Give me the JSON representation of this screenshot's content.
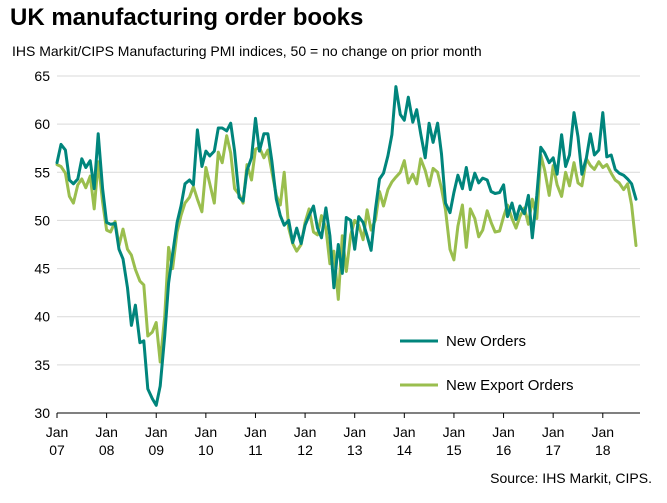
{
  "chart_data": {
    "type": "line",
    "title": "UK manufacturing order books",
    "subtitle": "IHS Markit/CIPS Manufacturing PMI indices, 50 = no change on prior month",
    "source": "Source: IHS Markit, CIPS.",
    "ylim": [
      30,
      65
    ],
    "yticks": [
      "65",
      "60",
      "55",
      "50",
      "45",
      "40",
      "35",
      "30"
    ],
    "xlim": [
      2007.0,
      2018.75
    ],
    "xticks": [
      {
        "line1": "Jan",
        "line2": "07"
      },
      {
        "line1": "Jan",
        "line2": "08"
      },
      {
        "line1": "Jan",
        "line2": "09"
      },
      {
        "line1": "Jan",
        "line2": "10"
      },
      {
        "line1": "Jan",
        "line2": "11"
      },
      {
        "line1": "Jan",
        "line2": "12"
      },
      {
        "line1": "Jan",
        "line2": "13"
      },
      {
        "line1": "Jan",
        "line2": "14"
      },
      {
        "line1": "Jan",
        "line2": "15"
      },
      {
        "line1": "Jan",
        "line2": "16"
      },
      {
        "line1": "Jan",
        "line2": "17"
      },
      {
        "line1": "Jan",
        "line2": "18"
      }
    ],
    "grid": true,
    "legend_position": "bottom-right",
    "series": [
      {
        "name": "New Orders",
        "color": "#00857C",
        "points": [
          [
            2007.0,
            56.0
          ],
          [
            2007.08,
            57.9
          ],
          [
            2007.17,
            57.3
          ],
          [
            2007.25,
            54.2
          ],
          [
            2007.33,
            53.8
          ],
          [
            2007.42,
            54.3
          ],
          [
            2007.5,
            56.4
          ],
          [
            2007.58,
            55.5
          ],
          [
            2007.67,
            56.2
          ],
          [
            2007.75,
            53.3
          ],
          [
            2007.83,
            59.0
          ],
          [
            2007.92,
            53.3
          ],
          [
            2008.0,
            49.8
          ],
          [
            2008.08,
            49.6
          ],
          [
            2008.17,
            49.7
          ],
          [
            2008.25,
            47.0
          ],
          [
            2008.33,
            46.0
          ],
          [
            2008.42,
            43.0
          ],
          [
            2008.5,
            39.1
          ],
          [
            2008.58,
            41.2
          ],
          [
            2008.67,
            37.3
          ],
          [
            2008.75,
            37.5
          ],
          [
            2008.83,
            32.5
          ],
          [
            2008.92,
            31.5
          ],
          [
            2009.0,
            30.8
          ],
          [
            2009.08,
            32.8
          ],
          [
            2009.17,
            38.0
          ],
          [
            2009.25,
            43.5
          ],
          [
            2009.33,
            46.5
          ],
          [
            2009.42,
            49.8
          ],
          [
            2009.5,
            51.5
          ],
          [
            2009.58,
            53.8
          ],
          [
            2009.67,
            54.2
          ],
          [
            2009.75,
            53.7
          ],
          [
            2009.83,
            59.4
          ],
          [
            2009.92,
            55.6
          ],
          [
            2010.0,
            57.2
          ],
          [
            2010.08,
            56.7
          ],
          [
            2010.17,
            57.2
          ],
          [
            2010.25,
            59.6
          ],
          [
            2010.33,
            59.6
          ],
          [
            2010.42,
            59.3
          ],
          [
            2010.5,
            60.1
          ],
          [
            2010.58,
            57.2
          ],
          [
            2010.67,
            52.4
          ],
          [
            2010.75,
            52.0
          ],
          [
            2010.83,
            55.2
          ],
          [
            2010.92,
            56.5
          ],
          [
            2011.0,
            60.6
          ],
          [
            2011.08,
            57.2
          ],
          [
            2011.17,
            59.0
          ],
          [
            2011.25,
            59.0
          ],
          [
            2011.33,
            56.2
          ],
          [
            2011.42,
            52.2
          ],
          [
            2011.5,
            50.5
          ],
          [
            2011.58,
            49.5
          ],
          [
            2011.67,
            50.0
          ],
          [
            2011.75,
            47.7
          ],
          [
            2011.83,
            49.2
          ],
          [
            2011.92,
            47.6
          ],
          [
            2012.0,
            49.5
          ],
          [
            2012.08,
            50.5
          ],
          [
            2012.17,
            51.5
          ],
          [
            2012.25,
            49.2
          ],
          [
            2012.33,
            48.2
          ],
          [
            2012.42,
            51.3
          ],
          [
            2012.5,
            48.4
          ],
          [
            2012.58,
            43.0
          ],
          [
            2012.67,
            47.5
          ],
          [
            2012.75,
            44.5
          ],
          [
            2012.83,
            50.3
          ],
          [
            2012.92,
            50.0
          ],
          [
            2013.0,
            47.0
          ],
          [
            2013.08,
            50.4
          ],
          [
            2013.17,
            49.8
          ],
          [
            2013.25,
            48.4
          ],
          [
            2013.33,
            46.9
          ],
          [
            2013.42,
            51.2
          ],
          [
            2013.5,
            54.3
          ],
          [
            2013.58,
            54.9
          ],
          [
            2013.67,
            56.7
          ],
          [
            2013.75,
            58.9
          ],
          [
            2013.83,
            63.9
          ],
          [
            2013.92,
            61.0
          ],
          [
            2014.0,
            60.4
          ],
          [
            2014.08,
            62.8
          ],
          [
            2014.17,
            60.2
          ],
          [
            2014.25,
            61.5
          ],
          [
            2014.33,
            59.0
          ],
          [
            2014.42,
            56.5
          ],
          [
            2014.5,
            60.1
          ],
          [
            2014.58,
            58.1
          ],
          [
            2014.67,
            60.1
          ],
          [
            2014.75,
            56.9
          ],
          [
            2014.83,
            51.8
          ],
          [
            2014.92,
            50.8
          ],
          [
            2015.0,
            52.9
          ],
          [
            2015.08,
            54.7
          ],
          [
            2015.17,
            53.3
          ],
          [
            2015.25,
            55.5
          ],
          [
            2015.33,
            53.2
          ],
          [
            2015.42,
            54.9
          ],
          [
            2015.5,
            53.9
          ],
          [
            2015.58,
            54.4
          ],
          [
            2015.67,
            54.2
          ],
          [
            2015.75,
            53.0
          ],
          [
            2015.83,
            52.8
          ],
          [
            2015.92,
            52.9
          ],
          [
            2016.0,
            53.7
          ],
          [
            2016.08,
            50.4
          ],
          [
            2016.17,
            51.8
          ],
          [
            2016.25,
            50.1
          ],
          [
            2016.33,
            51.5
          ],
          [
            2016.42,
            50.7
          ],
          [
            2016.5,
            52.6
          ],
          [
            2016.58,
            48.2
          ],
          [
            2016.67,
            52.6
          ],
          [
            2016.75,
            57.6
          ],
          [
            2016.83,
            57.0
          ],
          [
            2016.92,
            56.0
          ],
          [
            2017.0,
            56.5
          ],
          [
            2017.08,
            54.8
          ],
          [
            2017.17,
            58.9
          ],
          [
            2017.25,
            55.6
          ],
          [
            2017.33,
            56.8
          ],
          [
            2017.42,
            61.2
          ],
          [
            2017.5,
            58.7
          ],
          [
            2017.58,
            54.8
          ],
          [
            2017.67,
            56.5
          ],
          [
            2017.75,
            59.0
          ],
          [
            2017.83,
            56.8
          ],
          [
            2017.92,
            57.3
          ],
          [
            2018.0,
            61.2
          ],
          [
            2018.08,
            56.6
          ],
          [
            2018.17,
            56.8
          ],
          [
            2018.25,
            55.3
          ],
          [
            2018.33,
            54.9
          ],
          [
            2018.42,
            54.7
          ],
          [
            2018.5,
            54.3
          ],
          [
            2018.58,
            53.8
          ],
          [
            2018.67,
            52.2
          ]
        ]
      },
      {
        "name": "New Export Orders",
        "color": "#9ABE4E",
        "points": [
          [
            2007.0,
            55.8
          ],
          [
            2007.08,
            55.6
          ],
          [
            2007.17,
            54.9
          ],
          [
            2007.25,
            52.5
          ],
          [
            2007.33,
            51.8
          ],
          [
            2007.42,
            53.7
          ],
          [
            2007.5,
            54.3
          ],
          [
            2007.58,
            53.4
          ],
          [
            2007.67,
            54.6
          ],
          [
            2007.75,
            51.2
          ],
          [
            2007.83,
            56.1
          ],
          [
            2007.92,
            51.9
          ],
          [
            2008.0,
            49.0
          ],
          [
            2008.08,
            48.8
          ],
          [
            2008.17,
            49.9
          ],
          [
            2008.25,
            47.4
          ],
          [
            2008.33,
            49.1
          ],
          [
            2008.42,
            47.0
          ],
          [
            2008.5,
            46.4
          ],
          [
            2008.58,
            44.9
          ],
          [
            2008.67,
            43.7
          ],
          [
            2008.75,
            43.3
          ],
          [
            2008.83,
            38.0
          ],
          [
            2008.92,
            38.4
          ],
          [
            2009.0,
            39.4
          ],
          [
            2009.08,
            35.3
          ],
          [
            2009.17,
            40.0
          ],
          [
            2009.25,
            47.2
          ],
          [
            2009.33,
            45.0
          ],
          [
            2009.42,
            48.8
          ],
          [
            2009.5,
            50.5
          ],
          [
            2009.58,
            51.8
          ],
          [
            2009.67,
            52.4
          ],
          [
            2009.75,
            53.5
          ],
          [
            2009.83,
            52.2
          ],
          [
            2009.92,
            50.9
          ],
          [
            2010.0,
            55.5
          ],
          [
            2010.08,
            53.8
          ],
          [
            2010.17,
            51.8
          ],
          [
            2010.25,
            57.1
          ],
          [
            2010.33,
            56.0
          ],
          [
            2010.42,
            58.8
          ],
          [
            2010.5,
            57.0
          ],
          [
            2010.58,
            53.3
          ],
          [
            2010.67,
            52.7
          ],
          [
            2010.75,
            51.8
          ],
          [
            2010.83,
            55.8
          ],
          [
            2010.92,
            54.2
          ],
          [
            2011.0,
            57.4
          ],
          [
            2011.08,
            57.6
          ],
          [
            2011.17,
            56.5
          ],
          [
            2011.25,
            57.3
          ],
          [
            2011.33,
            55.1
          ],
          [
            2011.42,
            52.6
          ],
          [
            2011.5,
            51.6
          ],
          [
            2011.58,
            55.0
          ],
          [
            2011.67,
            49.2
          ],
          [
            2011.75,
            47.6
          ],
          [
            2011.83,
            46.8
          ],
          [
            2011.92,
            47.5
          ],
          [
            2012.0,
            49.8
          ],
          [
            2012.08,
            51.2
          ],
          [
            2012.17,
            48.8
          ],
          [
            2012.25,
            48.5
          ],
          [
            2012.33,
            50.5
          ],
          [
            2012.42,
            49.2
          ],
          [
            2012.5,
            45.5
          ],
          [
            2012.58,
            46.8
          ],
          [
            2012.67,
            41.8
          ],
          [
            2012.75,
            48.4
          ],
          [
            2012.83,
            44.7
          ],
          [
            2012.92,
            48.5
          ],
          [
            2013.0,
            50.0
          ],
          [
            2013.08,
            49.5
          ],
          [
            2013.17,
            48.0
          ],
          [
            2013.25,
            51.1
          ],
          [
            2013.33,
            49.0
          ],
          [
            2013.42,
            50.1
          ],
          [
            2013.5,
            53.0
          ],
          [
            2013.58,
            51.5
          ],
          [
            2013.67,
            53.2
          ],
          [
            2013.75,
            54.0
          ],
          [
            2013.83,
            54.5
          ],
          [
            2013.92,
            55.0
          ],
          [
            2014.0,
            56.2
          ],
          [
            2014.08,
            53.9
          ],
          [
            2014.17,
            54.8
          ],
          [
            2014.25,
            53.8
          ],
          [
            2014.33,
            56.4
          ],
          [
            2014.42,
            55.2
          ],
          [
            2014.5,
            53.6
          ],
          [
            2014.58,
            55.4
          ],
          [
            2014.67,
            55.0
          ],
          [
            2014.75,
            53.3
          ],
          [
            2014.83,
            51.1
          ],
          [
            2014.92,
            47.0
          ],
          [
            2015.0,
            45.9
          ],
          [
            2015.08,
            49.4
          ],
          [
            2015.17,
            51.6
          ],
          [
            2015.25,
            47.2
          ],
          [
            2015.33,
            51.2
          ],
          [
            2015.42,
            50.2
          ],
          [
            2015.5,
            48.3
          ],
          [
            2015.58,
            49.0
          ],
          [
            2015.67,
            51.0
          ],
          [
            2015.75,
            49.8
          ],
          [
            2015.83,
            48.8
          ],
          [
            2015.92,
            48.9
          ],
          [
            2016.0,
            50.4
          ],
          [
            2016.08,
            51.6
          ],
          [
            2016.17,
            50.2
          ],
          [
            2016.25,
            49.2
          ],
          [
            2016.33,
            50.4
          ],
          [
            2016.42,
            51.3
          ],
          [
            2016.5,
            49.6
          ],
          [
            2016.58,
            52.2
          ],
          [
            2016.67,
            50.2
          ],
          [
            2016.75,
            56.8
          ],
          [
            2016.83,
            55.2
          ],
          [
            2016.92,
            52.6
          ],
          [
            2017.0,
            55.7
          ],
          [
            2017.08,
            53.7
          ],
          [
            2017.17,
            52.5
          ],
          [
            2017.25,
            55.0
          ],
          [
            2017.33,
            53.6
          ],
          [
            2017.42,
            56.0
          ],
          [
            2017.5,
            53.9
          ],
          [
            2017.58,
            53.6
          ],
          [
            2017.67,
            56.4
          ],
          [
            2017.75,
            55.7
          ],
          [
            2017.83,
            55.3
          ],
          [
            2017.92,
            56.1
          ],
          [
            2018.0,
            55.5
          ],
          [
            2018.08,
            55.8
          ],
          [
            2018.17,
            54.9
          ],
          [
            2018.25,
            54.2
          ],
          [
            2018.33,
            53.9
          ],
          [
            2018.42,
            53.2
          ],
          [
            2018.5,
            53.8
          ],
          [
            2018.58,
            51.6
          ],
          [
            2018.67,
            47.4
          ]
        ]
      }
    ]
  }
}
